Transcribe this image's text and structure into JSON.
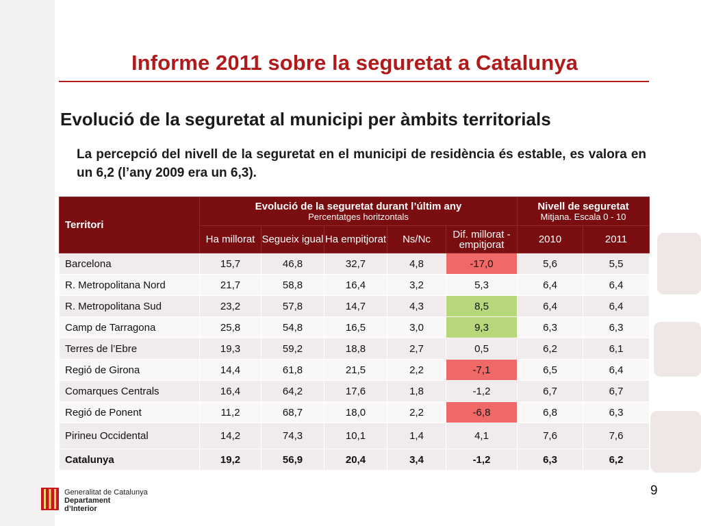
{
  "header": {
    "title": "Informe 2011 sobre la seguretat a Catalunya"
  },
  "main": {
    "subtitle": "Evolució de la seguretat al municipi per àmbits territorials",
    "description": "La percepció del nivell de la seguretat en el municipi de residència és estable, es valora en un 6,2 (l’any 2009 era un 6,3)."
  },
  "table": {
    "col_territori": "Territori",
    "group1": {
      "title": "Evolució de la seguretat durant l’últim any",
      "subtitle": "Percentatges horitzontals"
    },
    "group2": {
      "title": "Nivell de seguretat",
      "subtitle": "Mitjana. Escala 0 - 10"
    },
    "subheaders": [
      "Ha millorat",
      "Segueix igual",
      "Ha empitjorat",
      "Ns/Nc",
      "Dif. millorat -empitjorat",
      "2010",
      "2011"
    ],
    "rows": [
      {
        "name": "Barcelona",
        "values": [
          "15,7",
          "46,8",
          "32,7",
          "4,8",
          "-17,0",
          "5,6",
          "5,5"
        ],
        "highlight": "neg"
      },
      {
        "name": "R. Metropolitana Nord",
        "values": [
          "21,7",
          "58,8",
          "16,4",
          "3,2",
          "5,3",
          "6,4",
          "6,4"
        ],
        "highlight": ""
      },
      {
        "name": "R. Metropolitana Sud",
        "values": [
          "23,2",
          "57,8",
          "14,7",
          "4,3",
          "8,5",
          "6,4",
          "6,4"
        ],
        "highlight": "pos"
      },
      {
        "name": "Camp de Tarragona",
        "values": [
          "25,8",
          "54,8",
          "16,5",
          "3,0",
          "9,3",
          "6,3",
          "6,3"
        ],
        "highlight": "pos"
      },
      {
        "name": "Terres de l’Ebre",
        "values": [
          "19,3",
          "59,2",
          "18,8",
          "2,7",
          "0,5",
          "6,2",
          "6,1"
        ],
        "highlight": ""
      },
      {
        "name": "Regió de Girona",
        "values": [
          "14,4",
          "61,8",
          "21,5",
          "2,2",
          "-7,1",
          "6,5",
          "6,4"
        ],
        "highlight": "neg"
      },
      {
        "name": "Comarques Centrals",
        "values": [
          "16,4",
          "64,2",
          "17,6",
          "1,8",
          "-1,2",
          "6,7",
          "6,7"
        ],
        "highlight": ""
      },
      {
        "name": "Regió de Ponent",
        "values": [
          "11,2",
          "68,7",
          "18,0",
          "2,2",
          "-6,8",
          "6,8",
          "6,3"
        ],
        "highlight": "neg"
      },
      {
        "name": "Pirineu Occidental",
        "values": [
          "14,2",
          "74,3",
          "10,1",
          "1,4",
          "4,1",
          "7,6",
          "7,6"
        ],
        "highlight": ""
      },
      {
        "name": "Catalunya",
        "values": [
          "19,2",
          "56,9",
          "20,4",
          "3,4",
          "-1,2",
          "6,3",
          "6,2"
        ],
        "highlight": "",
        "total": true
      }
    ]
  },
  "footer": {
    "logo_line1": "Generalitat de Catalunya",
    "logo_line2": "Departament",
    "logo_line3": "d’Interior",
    "page_number": "9"
  },
  "colors": {
    "title": "#b01a1a",
    "header_bg": "#7a0d10",
    "negative_highlight": "#ef6a66",
    "positive_highlight": "#b6d77a"
  }
}
